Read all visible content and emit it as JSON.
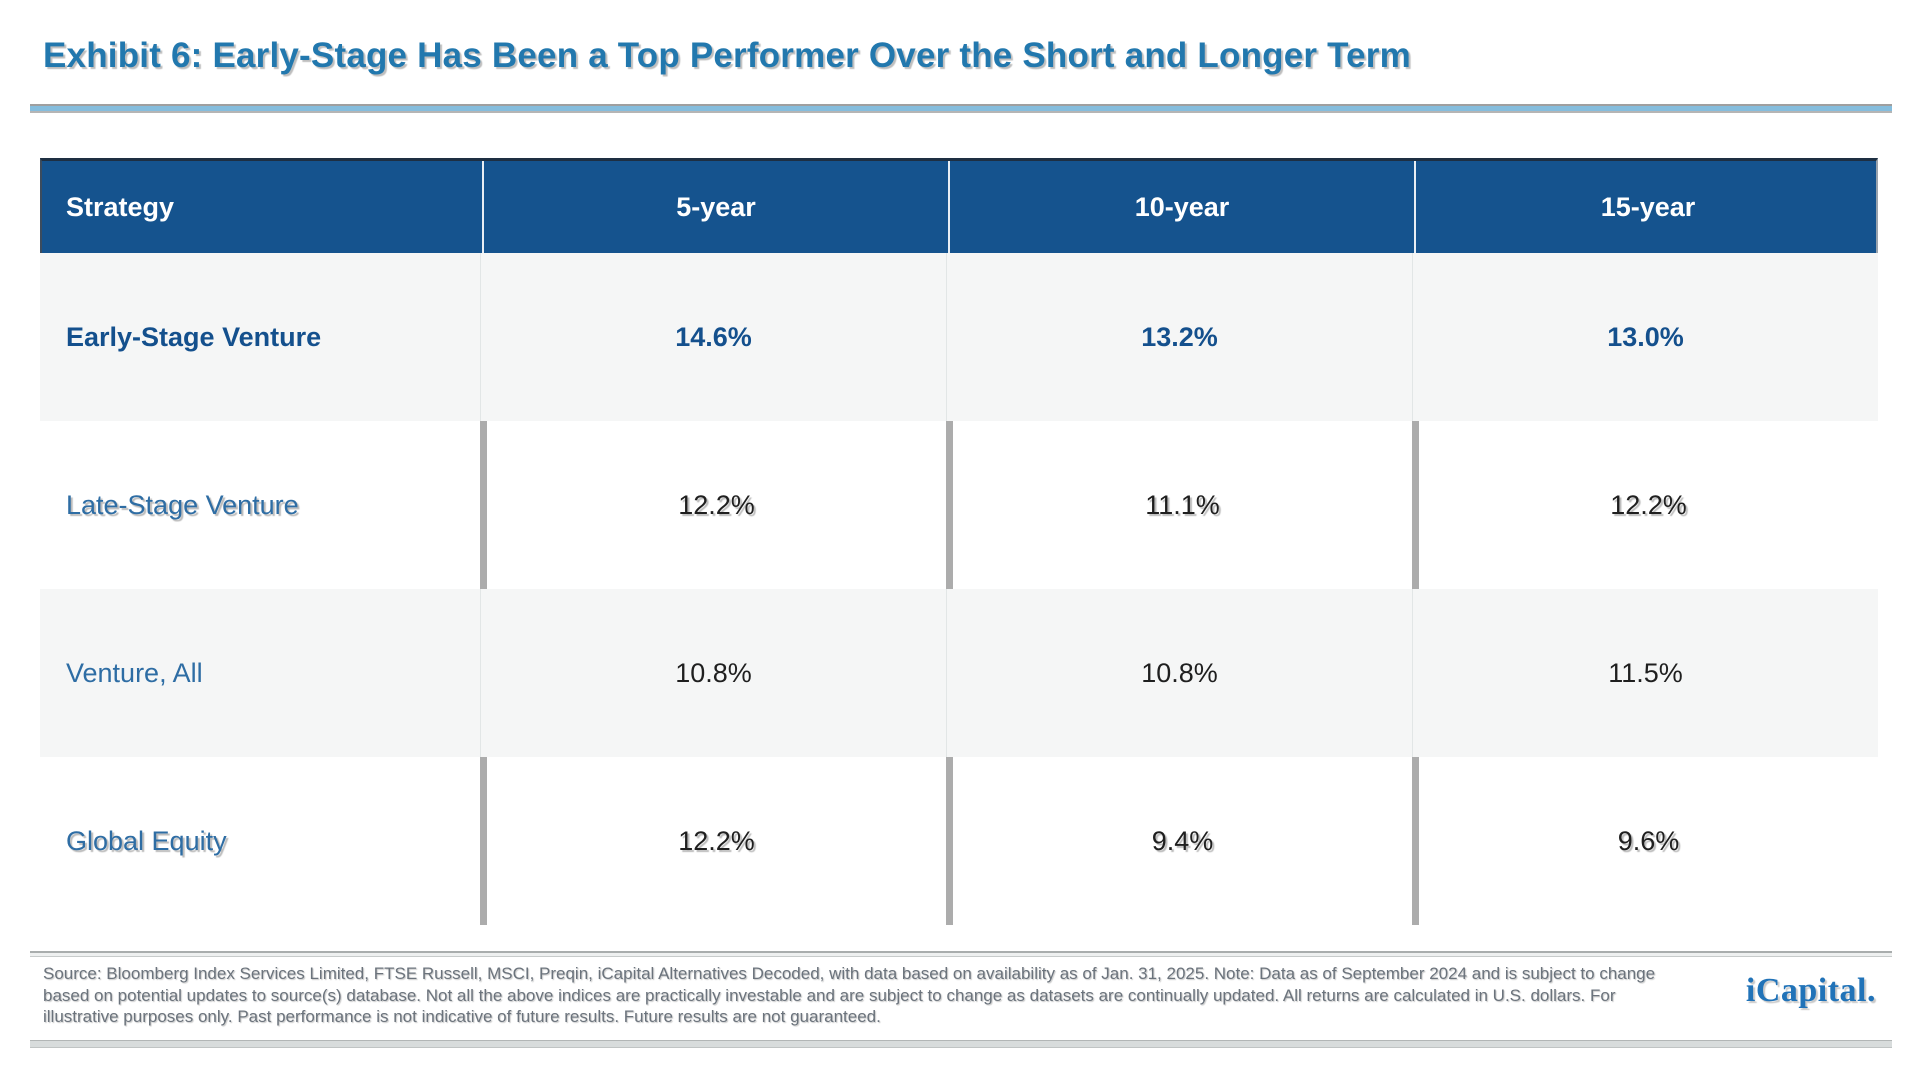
{
  "title": "Exhibit 6: Early-Stage Has Been a Top Performer Over the Short and Longer Term",
  "table": {
    "columns": [
      "Strategy",
      "5-year",
      "10-year",
      "15-year"
    ],
    "rows": [
      {
        "label": "Early-Stage Venture",
        "values": [
          "14.6%",
          "13.2%",
          "13.0%"
        ],
        "emphasis": true
      },
      {
        "label": "Late-Stage Venture",
        "values": [
          "12.2%",
          "11.1%",
          "12.2%"
        ],
        "emphasis": false
      },
      {
        "label": "Venture, All",
        "values": [
          "10.8%",
          "10.8%",
          "11.5%"
        ],
        "emphasis": false
      },
      {
        "label": "Global Equity",
        "values": [
          "12.2%",
          "9.4%",
          "9.6%"
        ],
        "emphasis": false
      }
    ]
  },
  "footer": {
    "source_note": "Source: Bloomberg Index Services Limited, FTSE Russell, MSCI, Preqin, iCapital Alternatives Decoded, with data based on availability as of Jan. 31, 2025. Note: Data as of September 2024 and is subject to change based on potential updates to source(s) database. Not all the above indices are practically investable and are subject to change as datasets are continually updated. All returns are calculated in U.S. dollars. For illustrative purposes only. Past performance is not indicative of future results. Future results are not guaranteed.",
    "logo_text": "iCapital."
  },
  "colors": {
    "header_bg": "#15538e",
    "emphasis_blue": "#14508d",
    "label_blue": "#2e6da4",
    "title_blue": "#2278ae",
    "logo_blue": "#2173b8",
    "shaded_row_bg": "#f5f6f6",
    "divider_gray": "#acacac",
    "footnote_gray": "#6b737c"
  }
}
